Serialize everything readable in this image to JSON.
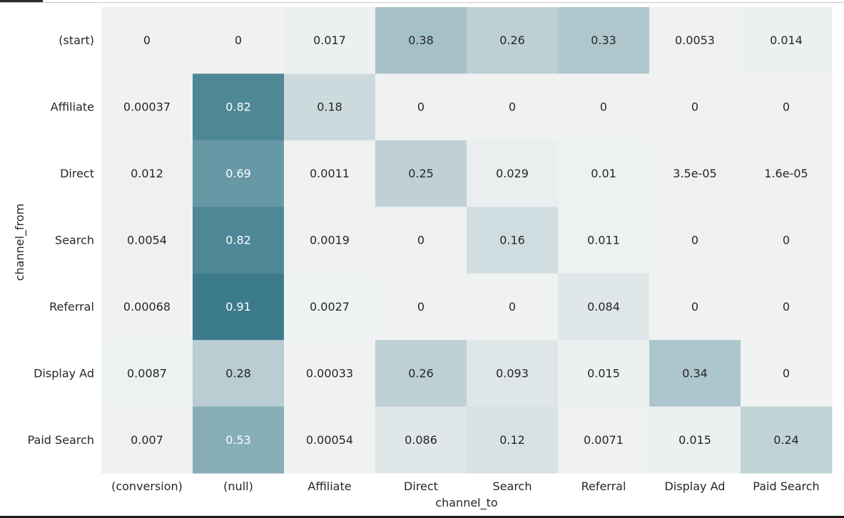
{
  "chart_data": {
    "type": "heatmap",
    "title": "",
    "xlabel": "channel_to",
    "ylabel": "channel_from",
    "x_categories": [
      "(conversion)",
      "(null)",
      "Affiliate",
      "Direct",
      "Search",
      "Referral",
      "Display Ad",
      "Paid Search"
    ],
    "y_categories": [
      "(start)",
      "Affiliate",
      "Direct",
      "Search",
      "Referral",
      "Display Ad",
      "Paid Search"
    ],
    "value_labels": [
      [
        "0",
        "0",
        "0.017",
        "0.38",
        "0.26",
        "0.33",
        "0.0053",
        "0.014"
      ],
      [
        "0.00037",
        "0.82",
        "0.18",
        "0",
        "0",
        "0",
        "0",
        "0"
      ],
      [
        "0.012",
        "0.69",
        "0.0011",
        "0.25",
        "0.029",
        "0.01",
        "3.5e-05",
        "1.6e-05"
      ],
      [
        "0.0054",
        "0.82",
        "0.0019",
        "0",
        "0.16",
        "0.011",
        "0",
        "0"
      ],
      [
        "0.00068",
        "0.91",
        "0.0027",
        "0",
        "0",
        "0.084",
        "0",
        "0"
      ],
      [
        "0.0087",
        "0.28",
        "0.00033",
        "0.26",
        "0.093",
        "0.015",
        "0.34",
        "0"
      ],
      [
        "0.007",
        "0.53",
        "0.00054",
        "0.086",
        "0.12",
        "0.0071",
        "0.015",
        "0.24"
      ]
    ],
    "values": [
      [
        0,
        0,
        0.017,
        0.38,
        0.26,
        0.33,
        0.0053,
        0.014
      ],
      [
        0.00037,
        0.82,
        0.18,
        0,
        0,
        0,
        0,
        0
      ],
      [
        0.012,
        0.69,
        0.0011,
        0.25,
        0.029,
        0.01,
        3.5e-05,
        1.6e-05
      ],
      [
        0.0054,
        0.82,
        0.0019,
        0,
        0.16,
        0.011,
        0,
        0
      ],
      [
        0.00068,
        0.91,
        0.0027,
        0,
        0,
        0.084,
        0,
        0
      ],
      [
        0.0087,
        0.28,
        0.00033,
        0.26,
        0.093,
        0.015,
        0.34,
        0
      ],
      [
        0.007,
        0.53,
        0.00054,
        0.086,
        0.12,
        0.0071,
        0.015,
        0.24
      ]
    ],
    "value_range": [
      0,
      1
    ],
    "colormap": {
      "low": "#f0f2f2",
      "high": "#2a6f82",
      "text_dark": "#262626",
      "text_light": "#ffffff"
    },
    "grid": false,
    "legend": "none"
  }
}
